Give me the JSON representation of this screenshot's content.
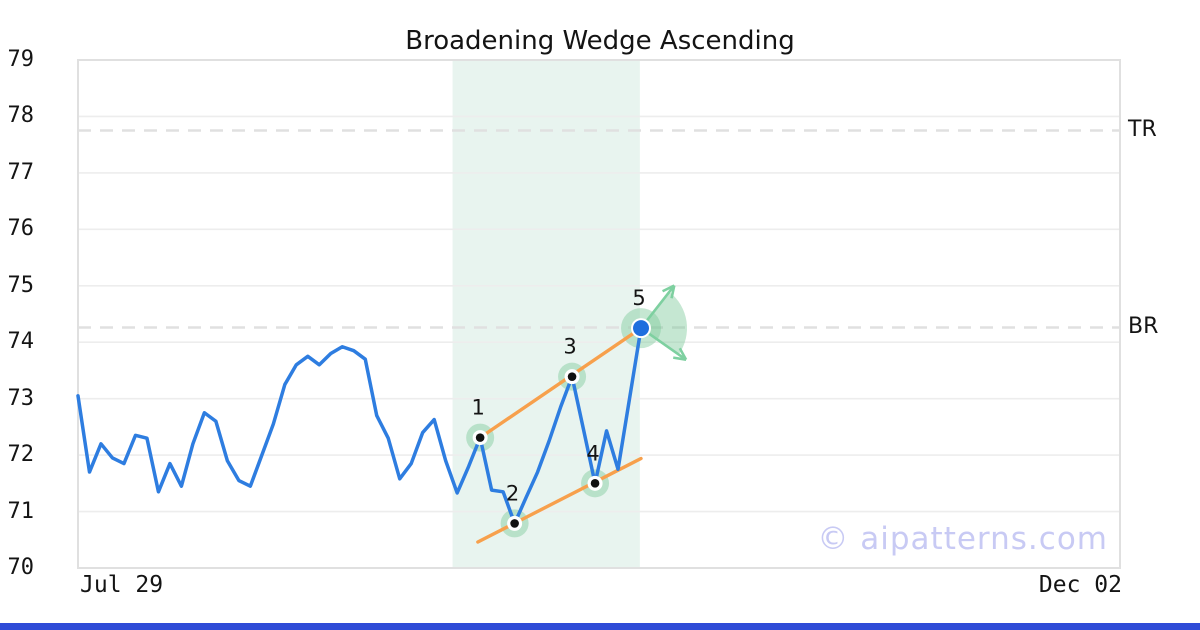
{
  "watermark": "© aipatterns.com",
  "colors": {
    "price_line": "#2E7DE0",
    "trendline": "#F7A04C",
    "highlight_region": "#E8F4EF",
    "pattern_halo": "rgba(127,201,155,0.45)",
    "projection_green": "#7ED0A0",
    "level_dash": "#E0E0E0",
    "grid": "#EDEDED",
    "frame": "#E0E0E0",
    "text": "#141414",
    "watermark_color": "#C8CAF4",
    "accent_bar": "#2F4BD7",
    "breakout_dot": "#1E6FDE",
    "marker_dot": "#111111"
  },
  "chart_data": {
    "type": "line",
    "title": "Broadening Wedge Ascending",
    "x_axis": {
      "tick_labels": [
        "Jul 29",
        "Dec 02"
      ]
    },
    "y_axis": {
      "min": 70,
      "max": 79,
      "ticks": [
        79,
        78,
        77,
        76,
        75,
        74,
        73,
        72,
        71,
        70
      ]
    },
    "series": [
      {
        "name": "price",
        "values": [
          73.05,
          71.7,
          72.2,
          71.95,
          71.85,
          72.35,
          72.3,
          71.35,
          71.85,
          71.45,
          72.2,
          72.75,
          72.6,
          71.9,
          71.55,
          71.45,
          72.0,
          72.55,
          73.25,
          73.6,
          73.75,
          73.6,
          73.8,
          73.92,
          73.85,
          73.7,
          72.7,
          72.3,
          71.58,
          71.85,
          72.4,
          72.63,
          71.9,
          71.33,
          71.8,
          72.31,
          71.38,
          71.35,
          70.79,
          71.25,
          71.7,
          72.25,
          72.85,
          73.39,
          72.45,
          71.5,
          72.43,
          71.75,
          73.0,
          74.25
        ]
      }
    ],
    "levels": [
      {
        "label": "TR",
        "value": 77.75
      },
      {
        "label": "BR",
        "value": 74.26
      }
    ],
    "pattern_points": [
      {
        "label": "1",
        "index": 35,
        "value": 72.31,
        "style": "pivot"
      },
      {
        "label": "2",
        "index": 38,
        "value": 70.79,
        "style": "pivot"
      },
      {
        "label": "3",
        "index": 43,
        "value": 73.39,
        "style": "pivot"
      },
      {
        "label": "4",
        "index": 45,
        "value": 71.5,
        "style": "pivot"
      },
      {
        "label": "5",
        "index": 49,
        "value": 74.25,
        "style": "breakout"
      }
    ],
    "trendlines": [
      {
        "name": "upper",
        "from": {
          "index": 35,
          "value": 72.31
        },
        "to": {
          "index": 49,
          "value": 74.25
        }
      },
      {
        "name": "lower",
        "from": {
          "index": 34.8,
          "value": 70.46
        },
        "to": {
          "index": 49,
          "value": 71.94
        }
      }
    ],
    "highlight_region": {
      "start_index": 32.6,
      "end_index": 48.9
    },
    "projection": {
      "fan": {
        "from_deg": -52,
        "to_deg": 35,
        "radius": 46
      },
      "arrows": [
        {
          "angle_deg": -52,
          "length": 54
        },
        {
          "angle_deg": 35,
          "length": 55
        }
      ]
    }
  }
}
